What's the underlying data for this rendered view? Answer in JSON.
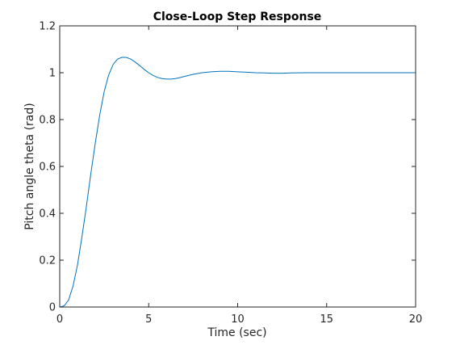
{
  "chart_data": {
    "type": "line",
    "title": "Close-Loop Step Response",
    "xlabel": "Time (sec)",
    "ylabel": "Pitch angle theta (rad)",
    "xlim": [
      0,
      20
    ],
    "ylim": [
      0,
      1.2
    ],
    "xticks": [
      0,
      5,
      10,
      15,
      20
    ],
    "yticks": [
      0,
      0.2,
      0.4,
      0.6,
      0.8,
      1,
      1.2
    ],
    "xtick_labels": [
      "0",
      "5",
      "10",
      "15",
      "20"
    ],
    "ytick_labels": [
      "0",
      "0.2",
      "0.4",
      "0.6",
      "0.8",
      "1",
      "1.2"
    ],
    "grid": false,
    "box": true,
    "line_color": "#0072bd",
    "axis_color": "#262626",
    "series": [
      {
        "x": [
          0,
          0.25,
          0.5,
          0.75,
          1,
          1.25,
          1.5,
          1.75,
          2,
          2.25,
          2.5,
          2.75,
          3,
          3.25,
          3.5,
          3.75,
          4,
          4.25,
          4.5,
          4.75,
          5,
          5.25,
          5.5,
          5.75,
          6,
          6.25,
          6.5,
          6.75,
          7,
          7.5,
          8,
          8.5,
          9,
          9.5,
          10,
          10.5,
          11,
          11.5,
          12,
          12.5,
          13,
          14,
          15,
          16,
          17,
          18,
          19,
          20
        ],
        "y": [
          0,
          0.005,
          0.03,
          0.09,
          0.18,
          0.3,
          0.43,
          0.57,
          0.7,
          0.82,
          0.92,
          0.99,
          1.035,
          1.058,
          1.066,
          1.065,
          1.058,
          1.045,
          1.03,
          1.014,
          1.0,
          0.988,
          0.98,
          0.975,
          0.973,
          0.973,
          0.975,
          0.979,
          0.984,
          0.993,
          1.0,
          1.004,
          1.006,
          1.006,
          1.004,
          1.002,
          1.0,
          0.999,
          0.998,
          0.998,
          0.999,
          1.0,
          1.0,
          1.0,
          1.0,
          1.0,
          1.0,
          1.0
        ]
      }
    ]
  }
}
